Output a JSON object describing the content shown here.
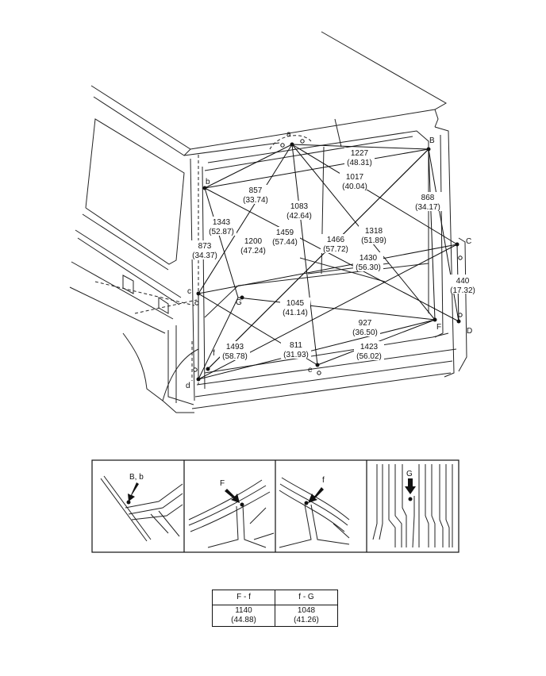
{
  "points": {
    "a": "a",
    "B": "B",
    "b": "b",
    "C": "C",
    "c": "c",
    "D": "D",
    "d": "d",
    "e": "e",
    "F": "F",
    "f": "f",
    "G": "G"
  },
  "measurements": [
    {
      "mm": "1227",
      "in": "(48.31)"
    },
    {
      "mm": "1017",
      "in": "(40.04)"
    },
    {
      "mm": "857",
      "in": "(33.74)"
    },
    {
      "mm": "868",
      "in": "(34.17)"
    },
    {
      "mm": "1083",
      "in": "(42.64)"
    },
    {
      "mm": "1343",
      "in": "(52.87)"
    },
    {
      "mm": "1318",
      "in": "(51.89)"
    },
    {
      "mm": "873",
      "in": "(34.37)"
    },
    {
      "mm": "1200",
      "in": "(47.24)"
    },
    {
      "mm": "1459",
      "in": "(57.44)"
    },
    {
      "mm": "1466",
      "in": "(57.72)"
    },
    {
      "mm": "1430",
      "in": "(56.30)"
    },
    {
      "mm": "440",
      "in": "(17.32)"
    },
    {
      "mm": "1045",
      "in": "(41.14)"
    },
    {
      "mm": "927",
      "in": "(36.50)"
    },
    {
      "mm": "1493",
      "in": "(58.78)"
    },
    {
      "mm": "811",
      "in": "(31.93)"
    },
    {
      "mm": "1423",
      "in": "(56.02)"
    }
  ],
  "details": [
    {
      "label": "B, b"
    },
    {
      "label": "F"
    },
    {
      "label": "f"
    },
    {
      "label": "G"
    }
  ],
  "table": {
    "headers": [
      "F - f",
      "f - G"
    ],
    "mm": [
      "1140",
      "1048"
    ],
    "in": [
      "(44.88)",
      "(41.26)"
    ]
  }
}
